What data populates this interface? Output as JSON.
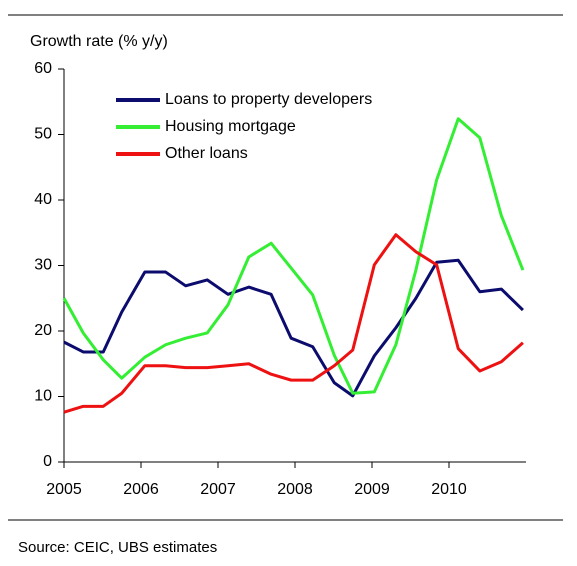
{
  "chart_data": {
    "type": "line",
    "y_axis_label": "Growth rate (% y/y)",
    "source": "Source: CEIC, UBS estimates",
    "x": [
      2005.0,
      2005.25,
      2005.51,
      2005.75,
      2006.05,
      2006.32,
      2006.58,
      2006.86,
      2007.13,
      2007.4,
      2007.69,
      2007.95,
      2008.23,
      2008.51,
      2008.75,
      2009.03,
      2009.31,
      2009.57,
      2009.84,
      2010.12,
      2010.4,
      2010.68,
      2010.96
    ],
    "series": [
      {
        "name": "Loans to property developers",
        "color": "#0c0c6e",
        "values": [
          18.3,
          16.8,
          16.8,
          22.9,
          29.0,
          29.0,
          26.9,
          27.8,
          25.6,
          26.7,
          25.6,
          18.9,
          17.6,
          12.1,
          10.1,
          16.2,
          20.5,
          25.0,
          30.5,
          30.8,
          26.0,
          26.4,
          23.2
        ]
      },
      {
        "name": "Housing mortgage",
        "color": "#33ee33",
        "values": [
          25.0,
          19.7,
          15.6,
          12.8,
          16.0,
          17.9,
          18.9,
          19.7,
          24.0,
          31.3,
          33.4,
          29.6,
          25.5,
          16.3,
          10.5,
          10.7,
          17.9,
          29.3,
          43.1,
          52.4,
          49.5,
          37.6,
          29.3
        ]
      },
      {
        "name": "Other loans",
        "color": "#ee1111",
        "values": [
          7.6,
          8.5,
          8.5,
          10.5,
          14.7,
          14.7,
          14.4,
          14.4,
          14.7,
          15.0,
          13.4,
          12.5,
          12.5,
          14.7,
          17.1,
          30.1,
          34.7,
          32.1,
          30.1,
          17.3,
          13.9,
          15.3,
          18.2
        ]
      }
    ],
    "xlim": [
      2005,
      2011
    ],
    "xticks": [
      2005,
      2006,
      2007,
      2008,
      2009,
      2010
    ],
    "ylim": [
      0,
      60
    ],
    "yticks": [
      0,
      10,
      20,
      30,
      40,
      50,
      60
    ],
    "grid": false,
    "legend": "top-left"
  }
}
